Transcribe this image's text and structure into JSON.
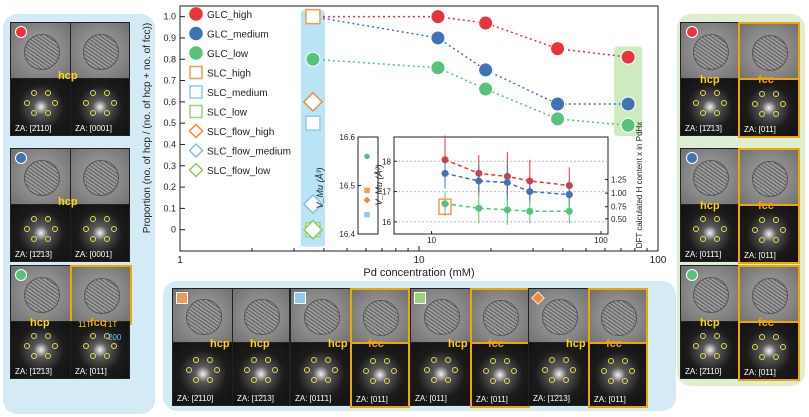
{
  "colors": {
    "high": "#e8343a",
    "medium": "#3f73b6",
    "low": "#55c47a",
    "slc_high": "#f39b54",
    "slc_medium": "#8fcaf0",
    "slc_low": "#9ed27a",
    "slc_flow_high": "#f08a3c",
    "slc_flow_medium": "#7fbfe8",
    "slc_flow_low": "#8ccc5a",
    "panel_blue": "#d4ebf5",
    "panel_green": "#dcefd2",
    "highlight_blue": "#b9e4f6",
    "highlight_green": "#cdebbf"
  },
  "chart_data": [
    {
      "type": "scatter",
      "xlabel": "Pd concentration (mM)",
      "ylabel": "Proportion (no. of hcp / (no. of hcp + no. of fcc))",
      "x_scale": "log",
      "xlim": [
        1,
        100
      ],
      "ylim": [
        -0.1,
        1.05
      ],
      "x_ticks": [
        1,
        10,
        100
      ],
      "x_tick_labels": [
        "1",
        "10",
        "100"
      ],
      "y_ticks": [
        0,
        0.1,
        0.2,
        0.3,
        0.4,
        0.5,
        0.6,
        0.7,
        0.8,
        0.9,
        1.0
      ],
      "y_tick_labels": [
        "0",
        "0.1",
        "0.2",
        "0.3",
        "0.4",
        "0.5",
        "0.6",
        "0.7",
        "0.8",
        "0.9",
        "1.0"
      ],
      "legend_position": "top-left",
      "series": [
        {
          "name": "GLC_high",
          "marker": "circle",
          "color_key": "high",
          "x": [
            3.6,
            12,
            19,
            38,
            75
          ],
          "y": [
            1.0,
            1.0,
            0.97,
            0.85,
            0.81
          ],
          "line": "dotted"
        },
        {
          "name": "GLC_medium",
          "marker": "circle",
          "color_key": "medium",
          "x": [
            3.6,
            12,
            19,
            38,
            75
          ],
          "y": [
            1.0,
            0.9,
            0.75,
            0.59,
            0.59
          ],
          "line": "dotted"
        },
        {
          "name": "GLC_low",
          "marker": "circle",
          "color_key": "low",
          "x": [
            3.6,
            12,
            19,
            38,
            75
          ],
          "y": [
            0.8,
            0.76,
            0.66,
            0.52,
            0.49
          ],
          "line": "dotted"
        },
        {
          "name": "SLC_high",
          "marker": "square",
          "color_key": "slc_high",
          "x": [
            3.6
          ],
          "y": [
            1.0
          ]
        },
        {
          "name": "SLC_medium",
          "marker": "square",
          "color_key": "slc_medium",
          "x": [
            3.6
          ],
          "y": [
            0.5
          ]
        },
        {
          "name": "SLC_low",
          "marker": "square",
          "color_key": "slc_low",
          "x": [
            3.6
          ],
          "y": [
            0.0
          ]
        },
        {
          "name": "SLC_flow_high",
          "marker": "diamond",
          "color_key": "slc_flow_high",
          "x": [
            3.6
          ],
          "y": [
            0.6
          ]
        },
        {
          "name": "SLC_flow_medium",
          "marker": "diamond",
          "color_key": "slc_flow_medium",
          "x": [
            3.6
          ],
          "y": [
            0.12
          ]
        },
        {
          "name": "SLC_flow_low",
          "marker": "diamond",
          "color_key": "slc_flow_low",
          "x": [
            3.6
          ],
          "y": [
            0.0
          ]
        }
      ]
    },
    {
      "type": "scatter",
      "ylabel": "V_Mu (Å³)",
      "ylim": [
        16.4,
        16.6
      ],
      "y_ticks": [
        16.4,
        16.5,
        16.6
      ],
      "y_tick_labels": [
        "16.4",
        "16.5",
        "16.6"
      ],
      "series": [
        {
          "name": "GLC_low",
          "marker": "circle",
          "color_key": "low",
          "y": [
            16.56
          ]
        },
        {
          "name": "SLC_high",
          "marker": "square",
          "color_key": "slc_high",
          "y": [
            16.49
          ]
        },
        {
          "name": "SLC_flow_high",
          "marker": "diamond",
          "color_key": "slc_flow_high",
          "y": [
            16.47
          ]
        },
        {
          "name": "SLC_medium",
          "marker": "square",
          "color_key": "slc_medium",
          "y": [
            16.44
          ]
        }
      ]
    },
    {
      "type": "line",
      "ylabel": "V_Mu (Å³)",
      "y2label": "DFT calculated H content x in PdHx",
      "x_scale": "log",
      "xlim": [
        6,
        110
      ],
      "ylim": [
        15.6,
        18.8
      ],
      "x_ticks": [
        10,
        100
      ],
      "x_tick_labels": [
        "10",
        "100"
      ],
      "y_ticks": [
        16,
        17,
        18
      ],
      "y_tick_labels": [
        "16",
        "17",
        "18"
      ],
      "y2_ticks": [
        0.5,
        0.75,
        1.0,
        1.25
      ],
      "y2_tick_labels": [
        "0.50",
        "0.75",
        "1.00",
        "1.25"
      ],
      "series": [
        {
          "name": "GLC_high",
          "color_key": "high",
          "x": [
            12,
            19,
            28,
            38,
            65
          ],
          "y": [
            18.05,
            17.6,
            17.5,
            17.35,
            17.2
          ],
          "err": [
            0.8,
            0.6,
            0.8,
            0.7,
            0.6
          ]
        },
        {
          "name": "GLC_medium",
          "color_key": "medium",
          "x": [
            12,
            19,
            28,
            38,
            65
          ],
          "y": [
            17.6,
            17.35,
            17.3,
            17.0,
            16.9
          ],
          "err": [
            0.5,
            0.5,
            0.6,
            0.4,
            0.5
          ]
        },
        {
          "name": "GLC_low",
          "color_key": "low",
          "x": [
            12,
            19,
            28,
            38,
            65
          ],
          "y": [
            16.6,
            16.45,
            16.4,
            16.35,
            16.35
          ],
          "err": [
            0.4,
            0.5,
            0.5,
            0.4,
            0.4
          ]
        }
      ]
    }
  ],
  "legend": {
    "items": [
      {
        "label": "GLC_high",
        "marker": "circle",
        "color_key": "high"
      },
      {
        "label": "GLC_medium",
        "marker": "circle",
        "color_key": "medium"
      },
      {
        "label": "GLC_low",
        "marker": "circle",
        "color_key": "low"
      },
      {
        "label": "SLC_high",
        "marker": "square",
        "color_key": "slc_high"
      },
      {
        "label": "SLC_medium",
        "marker": "square",
        "color_key": "slc_medium"
      },
      {
        "label": "SLC_low",
        "marker": "square",
        "color_key": "slc_low"
      },
      {
        "label": "SLC_flow_high",
        "marker": "diamond",
        "color_key": "slc_flow_high"
      },
      {
        "label": "SLC_flow_medium",
        "marker": "diamond",
        "color_key": "slc_flow_medium"
      },
      {
        "label": "SLC_flow_low",
        "marker": "diamond",
        "color_key": "slc_flow_low"
      }
    ]
  },
  "left_panel": {
    "phase_hcp": "hcp",
    "phase_fcc": "fcc",
    "rows": [
      {
        "za_left": "ZA: [2̄110]",
        "za_right": "ZA: [0001]",
        "color_key": "high"
      },
      {
        "za_left": "ZA: [1̄2̄13]",
        "za_right": "ZA: [0001]",
        "color_key": "medium"
      },
      {
        "za_left": "ZA: [1̄2̄13]",
        "za_right": "ZA: [011]",
        "color_key": "low"
      }
    ],
    "fcc_index_1": "11T",
    "fcc_index_2": "T1T",
    "fcc_index_3": "200"
  },
  "right_panel": {
    "rows": [
      {
        "za_left": "ZA: [1̄2̄13]",
        "za_right": "ZA: [011]",
        "color_key": "high"
      },
      {
        "za_left": "ZA: [011̄1]",
        "za_right": "ZA: [011]",
        "color_key": "medium"
      },
      {
        "za_left": "ZA: [2̄110]",
        "za_right": "ZA: [011]",
        "color_key": "low"
      }
    ]
  },
  "bottom_panel": {
    "items": [
      {
        "za_left": "ZA: [2̄110]",
        "za_right": "ZA: [1̄2̄13]",
        "color_key": "slc_high",
        "marker": "square",
        "right_phase": "hcp"
      },
      {
        "za_left": "ZA: [011̄1]",
        "za_right": "ZA: [011]",
        "color_key": "slc_medium",
        "marker": "square",
        "right_phase": "fcc"
      },
      {
        "za_left": "ZA: [011]",
        "za_right": "ZA: [011]",
        "color_key": "slc_low",
        "marker": "square",
        "right_phase": "fcc"
      },
      {
        "za_left": "ZA: [1̄2̄13]",
        "za_right": "ZA: [011]",
        "color_key": "slc_flow_high",
        "marker": "diamond",
        "right_phase": "fcc"
      }
    ]
  }
}
